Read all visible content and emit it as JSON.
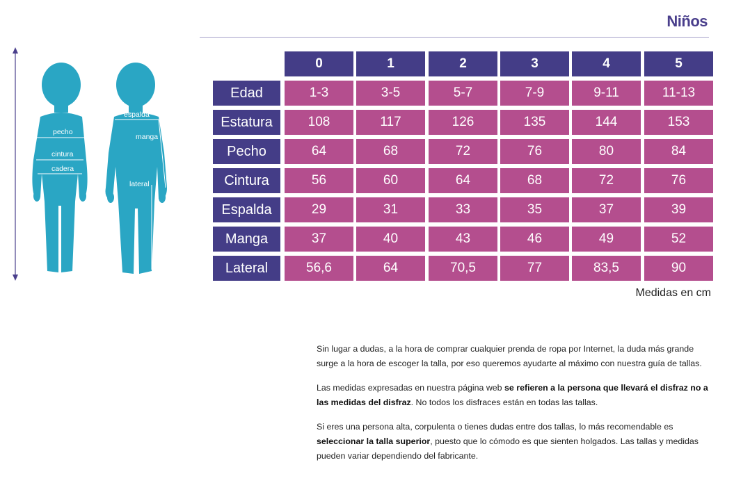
{
  "page": {
    "title": "Niños",
    "units_note": "Medidas en cm"
  },
  "figure_labels": {
    "pecho": "pecho",
    "cintura": "cintura",
    "cadera": "cadera",
    "espalda": "espalda",
    "manga": "manga",
    "lateral": "lateral"
  },
  "colors": {
    "header_bg": "#443d87",
    "value_bg": "#b44e8e",
    "silhouette": "#2aa6c4",
    "arrow": "#4a3f8c"
  },
  "table": {
    "columns": [
      "0",
      "1",
      "2",
      "3",
      "4",
      "5"
    ],
    "rows": [
      {
        "label": "Edad",
        "values": [
          "1-3",
          "3-5",
          "5-7",
          "7-9",
          "9-11",
          "11-13"
        ]
      },
      {
        "label": "Estatura",
        "values": [
          "108",
          "117",
          "126",
          "135",
          "144",
          "153"
        ]
      },
      {
        "label": "Pecho",
        "values": [
          "64",
          "68",
          "72",
          "76",
          "80",
          "84"
        ]
      },
      {
        "label": "Cintura",
        "values": [
          "56",
          "60",
          "64",
          "68",
          "72",
          "76"
        ]
      },
      {
        "label": "Espalda",
        "values": [
          "29",
          "31",
          "33",
          "35",
          "37",
          "39"
        ]
      },
      {
        "label": "Manga",
        "values": [
          "37",
          "40",
          "43",
          "46",
          "49",
          "52"
        ]
      },
      {
        "label": "Lateral",
        "values": [
          "56,6",
          "64",
          "70,5",
          "77",
          "83,5",
          "90"
        ]
      }
    ]
  },
  "notes": {
    "p1": "Sin lugar a dudas, a la hora de comprar cualquier prenda de ropa por Internet, la duda más grande surge a la hora de escoger la talla, por eso queremos ayudarte al máximo con nuestra guía de tallas.",
    "p2_a": "Las medidas expresadas en nuestra página web ",
    "p2_b": "se refieren a la persona que llevará el disfraz no a las medidas del disfraz",
    "p2_c": ". No todos los disfraces están en todas las tallas.",
    "p3_a": "Si eres una persona alta, corpulenta o tienes dudas entre dos tallas, lo más recomendable es ",
    "p3_b": "seleccionar la talla superior",
    "p3_c": ", puesto que lo cómodo es que sienten holgados. Las tallas y medidas pueden variar dependiendo del fabricante."
  }
}
